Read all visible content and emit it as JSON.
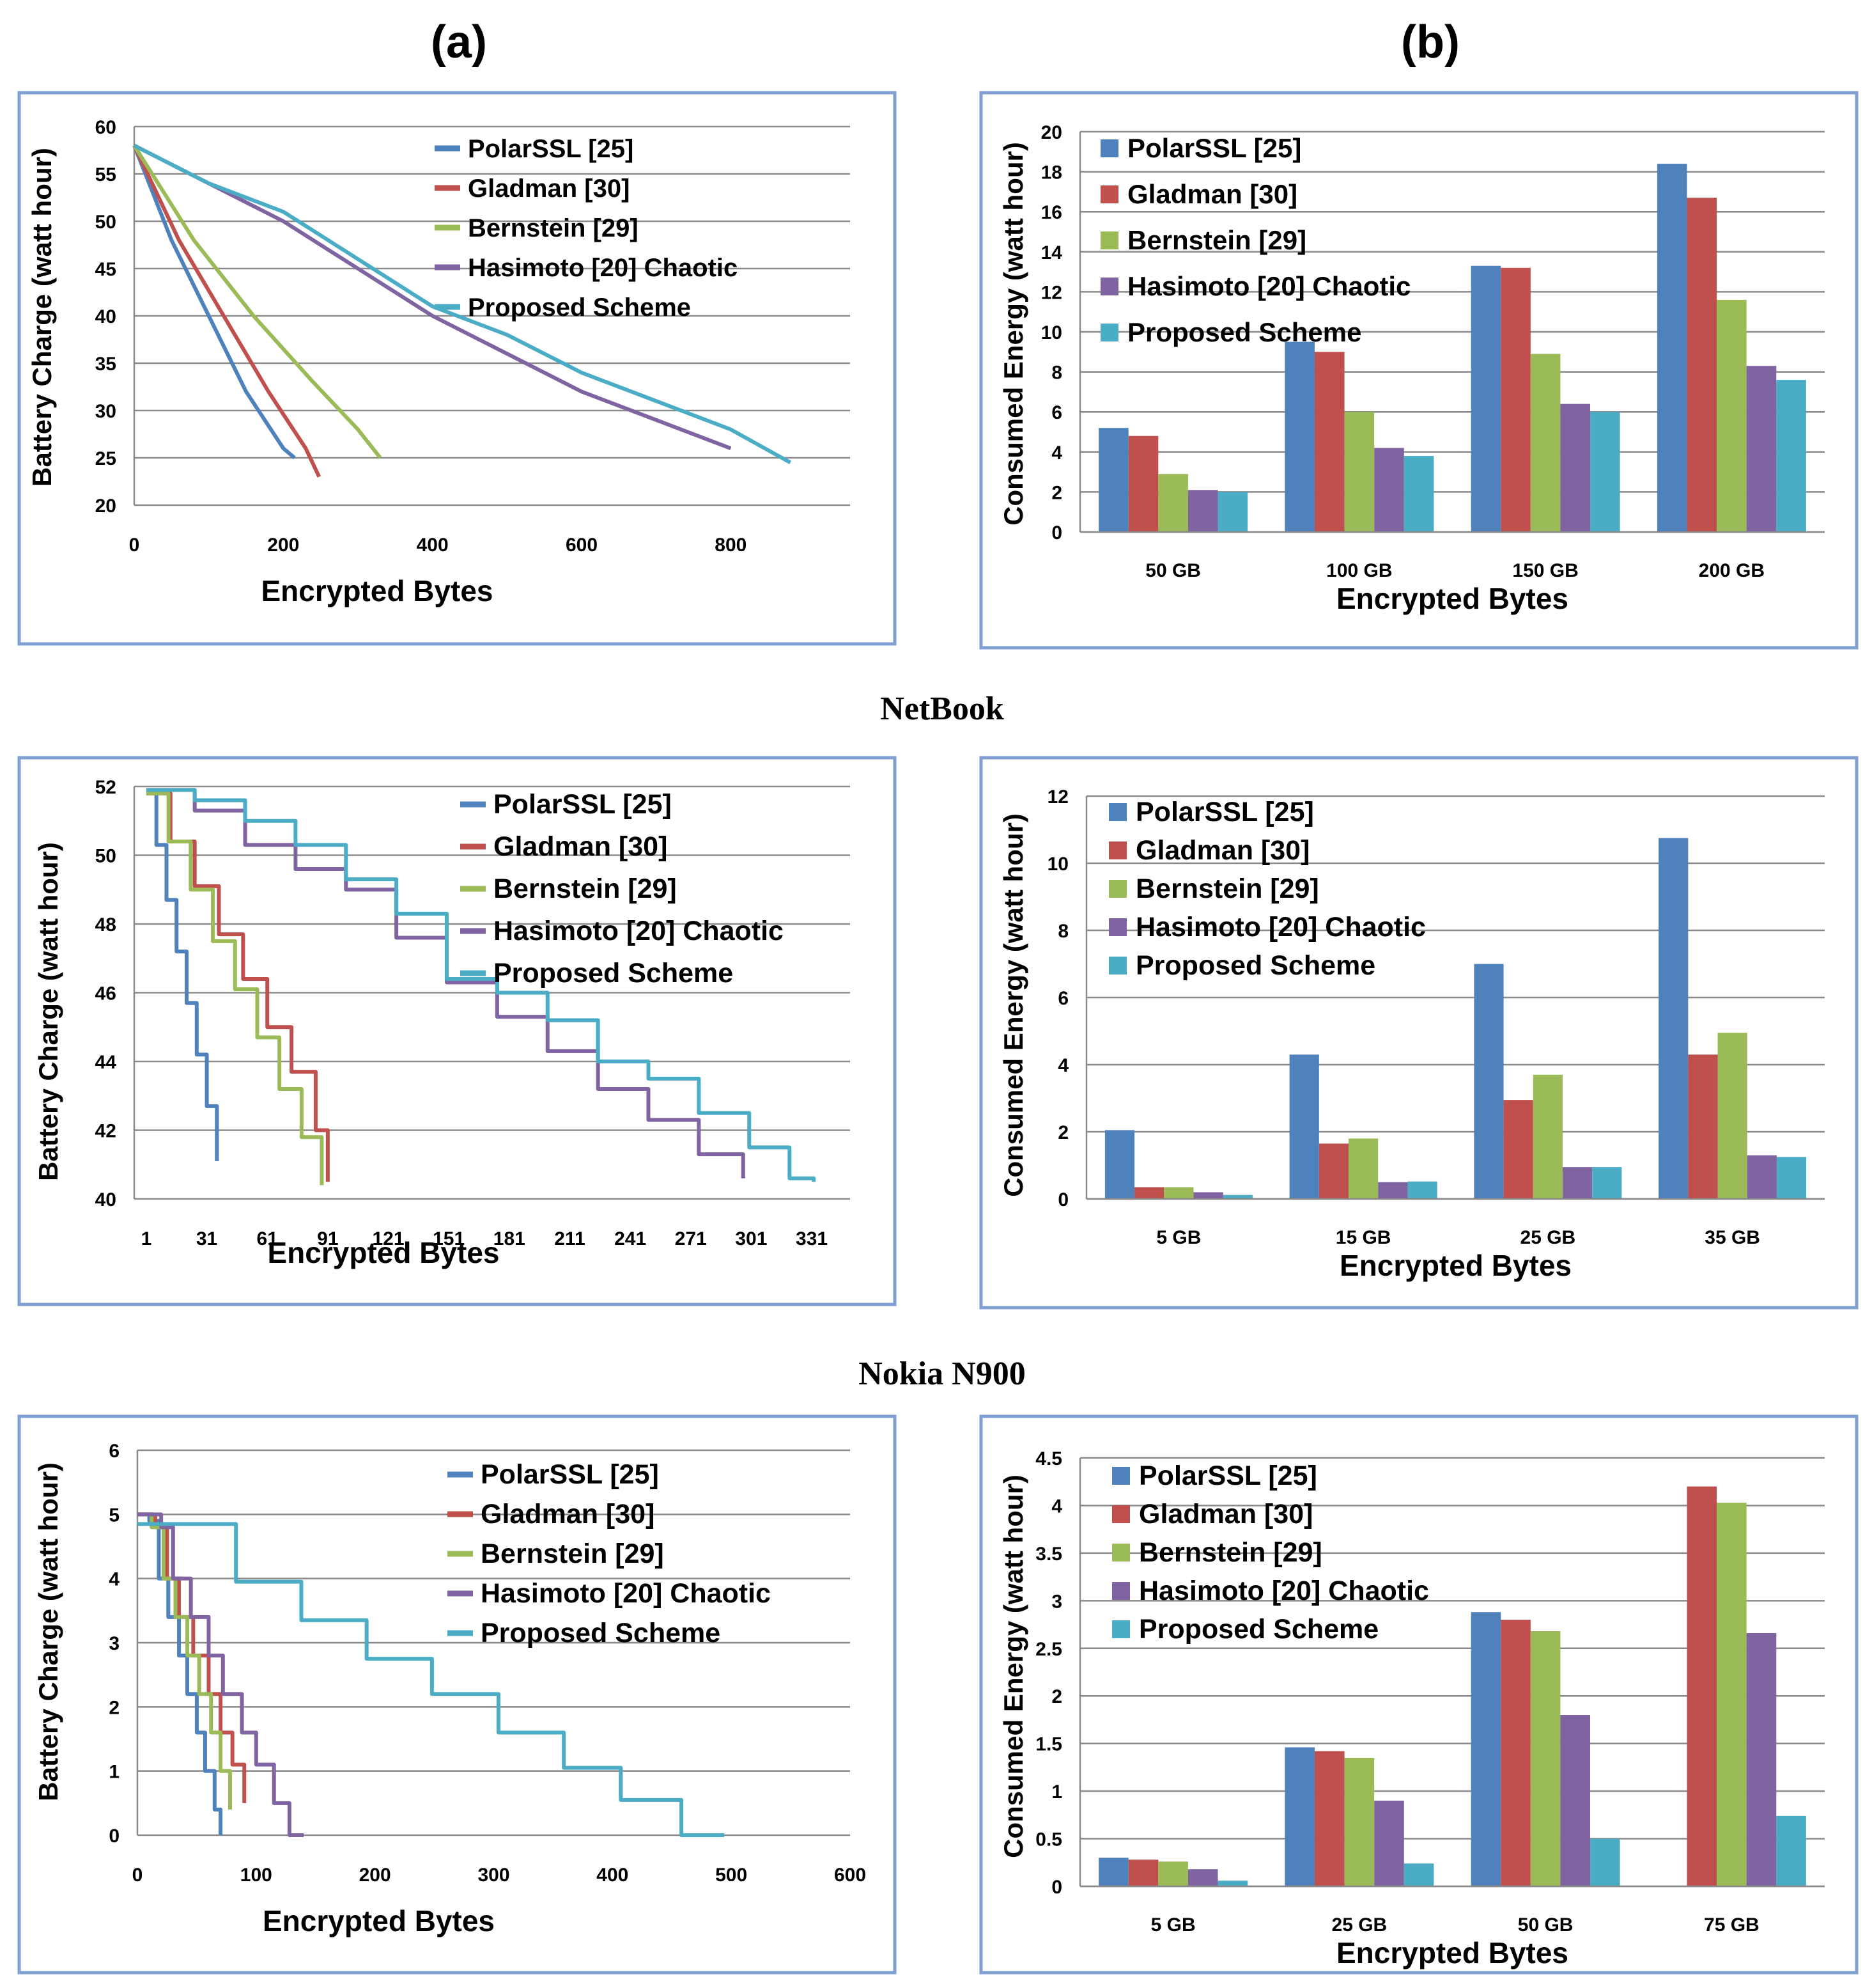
{
  "titles": {
    "col_a": "(a)",
    "col_b": "(b)",
    "device_1": "NetBook",
    "device_2": "Nokia N900"
  },
  "colors": {
    "PolarSSL": "#4f81bd",
    "Gladman": "#c0504d",
    "Bernstein": "#9bbb59",
    "Hasimoto": "#8064a2",
    "Proposed": "#4bacc6",
    "frame": "#7f9fd0",
    "grid": "#8a8a8a"
  },
  "legend_labels": {
    "line_row1": [
      "PolarSSL [25]",
      "Gladman [30]",
      "Bernstein [29]",
      "Hasimoto [20]   Chaotic",
      "Proposed Scheme"
    ],
    "bar_row1": [
      "PolarSSL [25]",
      "Gladman  [30]",
      "Bernstein [29]",
      "Hasimoto [20] Chaotic",
      "Proposed Scheme"
    ],
    "line_row2": [
      "PolarSSL [25]",
      "Gladman  [30]",
      "Bernstein [29]",
      "Hasimoto [20] Chaotic",
      "Proposed Scheme"
    ],
    "bar_row2": [
      "PolarSSL [25]",
      "Gladman  [30]",
      "Bernstein [29]",
      "Hasimoto [20] Chaotic",
      "Proposed Scheme"
    ],
    "line_row3": [
      "PolarSSL [25]",
      "Gladman [30]",
      "Bernstein [29]",
      "Hasimoto [20]   Chaotic",
      "Proposed Scheme"
    ],
    "bar_row3": [
      "PolarSSL [25]",
      "Gladman [30]",
      "Bernstein [29]",
      "Hasimoto [20] Chaotic",
      "Proposed Scheme"
    ]
  },
  "chart_data": [
    {
      "id": "line_row1",
      "type": "line",
      "xlabel": "Encrypted Bytes",
      "ylabel": "Battery Charge (watt hour)",
      "ylim": [
        20,
        60
      ],
      "yticks": [
        "20",
        "25",
        "30",
        "35",
        "40",
        "45",
        "50",
        "55",
        "60"
      ],
      "xlim": [
        0,
        960
      ],
      "xticks": [
        {
          "v": 0,
          "t": "0"
        },
        {
          "v": 200,
          "t": "200"
        },
        {
          "v": 400,
          "t": "400"
        },
        {
          "v": 600,
          "t": "600"
        },
        {
          "v": 800,
          "t": "800"
        }
      ],
      "step": false,
      "series": [
        {
          "name": "PolarSSL [25]",
          "x": [
            0,
            50,
            100,
            150,
            200,
            215
          ],
          "y": [
            58,
            48,
            40,
            32,
            26,
            25
          ]
        },
        {
          "name": "Gladman [30]",
          "x": [
            0,
            60,
            120,
            180,
            230,
            248
          ],
          "y": [
            58,
            48,
            40,
            32,
            26,
            23
          ]
        },
        {
          "name": "Bernstein [29]",
          "x": [
            0,
            80,
            160,
            240,
            300,
            330
          ],
          "y": [
            58,
            48,
            40,
            33,
            28,
            25
          ]
        },
        {
          "name": "Hasimoto [20]   Chaotic",
          "x": [
            0,
            100,
            200,
            300,
            400,
            500,
            600,
            700,
            800
          ],
          "y": [
            58,
            54,
            50,
            45,
            40,
            36,
            32,
            29,
            26
          ]
        },
        {
          "name": "Proposed Scheme",
          "x": [
            0,
            100,
            200,
            300,
            400,
            500,
            600,
            700,
            800,
            880
          ],
          "y": [
            58,
            54,
            51,
            46,
            41,
            38,
            34,
            31,
            28,
            24.5
          ]
        }
      ]
    },
    {
      "id": "bar_row1",
      "type": "bar",
      "xlabel": "Encrypted Bytes",
      "ylabel": "Consumed Energy  (watt hour)",
      "ylim": [
        0,
        20
      ],
      "yticks": [
        "0",
        "2",
        "4",
        "6",
        "8",
        "10",
        "12",
        "14",
        "16",
        "18",
        "20"
      ],
      "categories": [
        "50 GB",
        "100 GB",
        "150 GB",
        "200 GB"
      ],
      "series": [
        {
          "name": "PolarSSL [25]",
          "values": [
            5.2,
            9.5,
            13.3,
            18.4
          ]
        },
        {
          "name": "Gladman  [30]",
          "values": [
            4.8,
            9.0,
            13.2,
            16.7
          ]
        },
        {
          "name": "Bernstein [29]",
          "values": [
            2.9,
            6.0,
            8.9,
            11.6
          ]
        },
        {
          "name": "Hasimoto [20] Chaotic",
          "values": [
            2.1,
            4.2,
            6.4,
            8.3
          ]
        },
        {
          "name": "Proposed Scheme",
          "values": [
            2.0,
            3.8,
            6.0,
            7.6
          ]
        }
      ]
    },
    {
      "id": "line_row2",
      "type": "line",
      "xlabel": "Encrypted Bytes",
      "ylabel": "Battery Charge (watt hour)",
      "ylim": [
        40,
        52
      ],
      "yticks": [
        "40",
        "42",
        "44",
        "46",
        "48",
        "50",
        "52"
      ],
      "xlim": [
        -5,
        350
      ],
      "xticks": [
        {
          "v": 1,
          "t": "1"
        },
        {
          "v": 31,
          "t": "31"
        },
        {
          "v": 61,
          "t": "61"
        },
        {
          "v": 91,
          "t": "91"
        },
        {
          "v": 121,
          "t": "121"
        },
        {
          "v": 151,
          "t": "151"
        },
        {
          "v": 181,
          "t": "181"
        },
        {
          "v": 211,
          "t": "211"
        },
        {
          "v": 241,
          "t": "241"
        },
        {
          "v": 271,
          "t": "271"
        },
        {
          "v": 301,
          "t": "301"
        },
        {
          "v": 331,
          "t": "331"
        }
      ],
      "step": true,
      "series": [
        {
          "name": "PolarSSL [25]",
          "x": [
            1,
            6,
            11,
            16,
            21,
            26,
            31,
            36
          ],
          "y": [
            51.8,
            50.3,
            48.7,
            47.2,
            45.7,
            44.2,
            42.7,
            41.1
          ]
        },
        {
          "name": "Gladman  [30]",
          "x": [
            1,
            13,
            25,
            37,
            49,
            61,
            73,
            85,
            91
          ],
          "y": [
            51.8,
            50.4,
            49.1,
            47.7,
            46.4,
            45.0,
            43.7,
            42.0,
            40.5
          ]
        },
        {
          "name": "Bernstein [29]",
          "x": [
            1,
            12,
            23,
            34,
            45,
            56,
            67,
            78,
            88
          ],
          "y": [
            51.8,
            50.4,
            49.0,
            47.5,
            46.1,
            44.7,
            43.2,
            41.8,
            40.4
          ]
        },
        {
          "name": "Hasimoto [20] Chaotic",
          "x": [
            1,
            25,
            50,
            75,
            100,
            125,
            150,
            175,
            200,
            225,
            250,
            275,
            297
          ],
          "y": [
            51.9,
            51.3,
            50.3,
            49.6,
            49.0,
            47.6,
            46.3,
            45.3,
            44.3,
            43.2,
            42.3,
            41.3,
            40.6
          ]
        },
        {
          "name": "Proposed Scheme",
          "x": [
            1,
            25,
            50,
            75,
            100,
            125,
            150,
            175,
            200,
            225,
            250,
            275,
            300,
            320,
            332
          ],
          "y": [
            51.9,
            51.6,
            51.0,
            50.3,
            49.3,
            48.3,
            46.4,
            46.0,
            45.2,
            44.0,
            43.5,
            42.5,
            41.5,
            40.6,
            40.5
          ]
        }
      ]
    },
    {
      "id": "bar_row2",
      "type": "bar",
      "xlabel": "Encrypted Bytes",
      "ylabel": "Consumed Energy  (watt hour)",
      "ylim": [
        0,
        12
      ],
      "yticks": [
        "0",
        "2",
        "4",
        "6",
        "8",
        "10",
        "12"
      ],
      "categories": [
        "5 GB",
        "15 GB",
        "25 GB",
        "35 GB"
      ],
      "series": [
        {
          "name": "PolarSSL [25]",
          "values": [
            2.05,
            4.3,
            7.0,
            10.75
          ]
        },
        {
          "name": "Gladman  [30]",
          "values": [
            0.35,
            1.65,
            2.95,
            4.3
          ]
        },
        {
          "name": "Bernstein [29]",
          "values": [
            0.35,
            1.8,
            3.7,
            4.95
          ]
        },
        {
          "name": "Hasimoto [20] Chaotic",
          "values": [
            0.2,
            0.5,
            0.95,
            1.3
          ]
        },
        {
          "name": "Proposed Scheme",
          "values": [
            0.12,
            0.52,
            0.95,
            1.25
          ]
        }
      ]
    },
    {
      "id": "line_row3",
      "type": "line",
      "xlabel": "Encrypted Bytes",
      "ylabel": "Battery Charge (watt hour)",
      "ylim": [
        0,
        6
      ],
      "yticks": [
        "0",
        "1",
        "2",
        "3",
        "4",
        "5",
        "6"
      ],
      "xlim": [
        0,
        600
      ],
      "xticks": [
        {
          "v": 0,
          "t": "0"
        },
        {
          "v": 100,
          "t": "100"
        },
        {
          "v": 200,
          "t": "200"
        },
        {
          "v": 300,
          "t": "300"
        },
        {
          "v": 400,
          "t": "400"
        },
        {
          "v": 500,
          "t": "500"
        },
        {
          "v": 600,
          "t": "600"
        }
      ],
      "step": true,
      "series": [
        {
          "name": "PolarSSL [25]",
          "x": [
            0,
            10,
            18,
            26,
            35,
            42,
            50,
            57,
            65,
            70
          ],
          "y": [
            5.0,
            4.9,
            4.0,
            3.4,
            2.8,
            2.2,
            1.6,
            1.0,
            0.4,
            0.0
          ]
        },
        {
          "name": "Gladman [30]",
          "x": [
            0,
            15,
            25,
            35,
            47,
            60,
            70,
            80,
            90
          ],
          "y": [
            5.0,
            4.8,
            4.0,
            3.4,
            2.8,
            2.2,
            1.6,
            1.1,
            0.5
          ]
        },
        {
          "name": "Bernstein [29]",
          "x": [
            0,
            12,
            22,
            32,
            42,
            52,
            62,
            70,
            78
          ],
          "y": [
            5.0,
            4.8,
            4.0,
            3.4,
            2.8,
            2.2,
            1.6,
            1.0,
            0.4
          ]
        },
        {
          "name": "Hasimoto [20]   Chaotic",
          "x": [
            0,
            20,
            30,
            45,
            60,
            72,
            88,
            100,
            115,
            128,
            140
          ],
          "y": [
            5.0,
            4.8,
            4.0,
            3.4,
            2.8,
            2.2,
            1.6,
            1.1,
            0.5,
            0.0,
            0.0
          ]
        },
        {
          "name": "Proposed Scheme",
          "x": [
            0,
            83,
            138,
            193,
            248,
            304,
            359,
            407,
            458,
            494
          ],
          "y": [
            4.85,
            3.95,
            3.35,
            2.75,
            2.2,
            1.6,
            1.05,
            0.55,
            0.0,
            0.0
          ]
        }
      ]
    },
    {
      "id": "bar_row3",
      "type": "bar",
      "xlabel": "Encrypted Bytes",
      "ylabel": "Consumed Energy  (watt hour)",
      "ylim": [
        0,
        4.5
      ],
      "yticks": [
        "0",
        "0.5",
        "1",
        "1.5",
        "2",
        "2.5",
        "3",
        "3.5",
        "4",
        "4.5"
      ],
      "categories": [
        "5 GB",
        "25 GB",
        "50 GB",
        "75 GB"
      ],
      "series": [
        {
          "name": "PolarSSL [25]",
          "values": [
            0.3,
            1.46,
            2.88,
            0
          ]
        },
        {
          "name": "Gladman [30]",
          "values": [
            0.28,
            1.42,
            2.8,
            4.2
          ]
        },
        {
          "name": "Bernstein [29]",
          "values": [
            0.26,
            1.35,
            2.68,
            4.03
          ]
        },
        {
          "name": "Hasimoto [20] Chaotic",
          "values": [
            0.18,
            0.9,
            1.8,
            2.66
          ]
        },
        {
          "name": "Proposed Scheme",
          "values": [
            0.06,
            0.24,
            0.5,
            0.74
          ]
        }
      ]
    }
  ]
}
